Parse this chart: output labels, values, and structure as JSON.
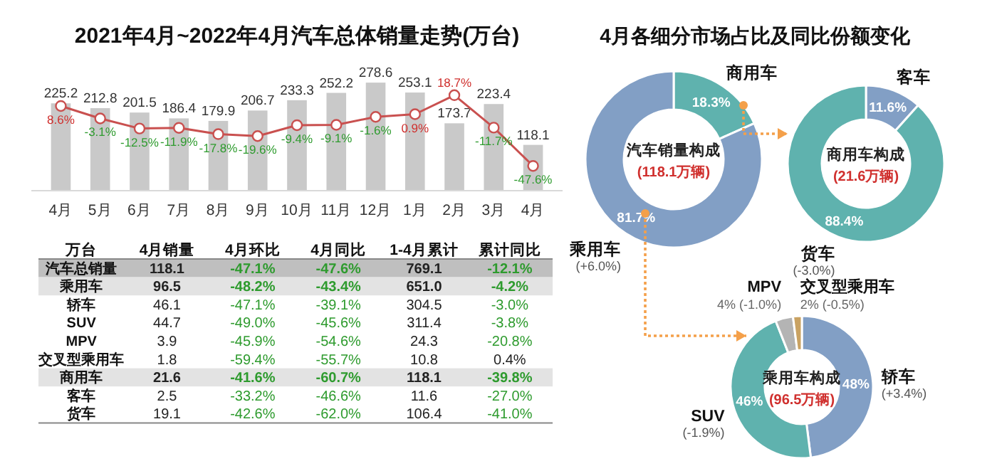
{
  "chart_data": [
    {
      "type": "bar",
      "title": "2021年4月~2022年4月汽车总体销量走势(万台)",
      "categories": [
        "4月",
        "5月",
        "6月",
        "7月",
        "8月",
        "9月",
        "10月",
        "11月",
        "12月",
        "1月",
        "2月",
        "3月",
        "4月"
      ],
      "data_labels": true,
      "marker": "circle",
      "tick_labels": "x",
      "series": [
        {
          "type": "bar",
          "color": "#c9c9c9",
          "values": [
            225.2,
            212.8,
            201.5,
            186.4,
            179.9,
            206.7,
            233.3,
            252.2,
            278.6,
            253.1,
            173.7,
            223.4,
            118.1
          ]
        },
        {
          "type": "line",
          "axis": "y2",
          "color": "#c9504f",
          "values": [
            8.6,
            -3.1,
            -12.5,
            -11.9,
            -17.8,
            -19.6,
            -9.4,
            -9.1,
            -1.6,
            0.9,
            18.7,
            -11.7,
            -47.6
          ],
          "value_labels": [
            "8.6%",
            "-3.1%",
            "-12.5%",
            "-11.9%",
            "-17.8%",
            "-19.6%",
            "-9.4%",
            "-9.1%",
            "-1.6%",
            "0.9%",
            "18.7%",
            "-11.7%",
            "-47.6%"
          ]
        }
      ]
    },
    {
      "type": "other",
      "categories": [
        "万台",
        "4月销量",
        "4月环比",
        "4月同比",
        "1-4月累计",
        "累计同比"
      ],
      "y_categories": [
        "汽车总销量",
        "乘用车",
        "轿车",
        "SUV",
        "MPV",
        "交叉型乘用车",
        "商用车",
        "客车",
        "货车"
      ],
      "cell_labels": [
        [
          "118.1",
          "-47.1%",
          "-47.6%",
          "769.1",
          "-12.1%"
        ],
        [
          "96.5",
          "-48.2%",
          "-43.4%",
          "651.0",
          "-4.2%"
        ],
        [
          "46.1",
          "-47.1%",
          "-39.1%",
          "304.5",
          "-3.0%"
        ],
        [
          "44.7",
          "-49.0%",
          "-45.6%",
          "311.4",
          "-3.8%"
        ],
        [
          "3.9",
          "-45.9%",
          "-54.6%",
          "24.3",
          "-20.8%"
        ],
        [
          "1.8",
          "-59.4%",
          "-55.7%",
          "10.8",
          "0.4%"
        ],
        [
          "21.6",
          "-41.6%",
          "-60.7%",
          "118.1",
          "-39.8%"
        ],
        [
          "2.5",
          "-33.2%",
          "-46.6%",
          "11.6",
          "-27.0%"
        ],
        [
          "19.1",
          "-42.6%",
          "-62.0%",
          "106.4",
          "-41.0%"
        ]
      ]
    },
    {
      "type": "donut",
      "title": "4月各细分市场占比及同比份额变化",
      "categories": [
        "商用车",
        "乘用车"
      ],
      "values": [
        18.3,
        81.7
      ],
      "colors": [
        "#5fb2ae",
        "#829fc5"
      ],
      "value_labels": [
        "18.3%",
        "81.7% (+6.0%)"
      ],
      "annotations": [
        "汽车销量构成",
        "(118.1万辆)"
      ]
    },
    {
      "type": "donut",
      "categories": [
        "客车",
        "货车"
      ],
      "values": [
        11.6,
        88.4
      ],
      "colors": [
        "#829fc5",
        "#5fb2ae"
      ],
      "value_labels": [
        "11.6%",
        "88.4% (-3.0%)"
      ],
      "annotations": [
        "商用车构成",
        "(21.6万辆)"
      ]
    },
    {
      "type": "donut",
      "categories": [
        "轿车",
        "SUV",
        "MPV",
        "交叉型乘用车"
      ],
      "values": [
        48,
        46,
        4,
        2
      ],
      "colors": [
        "#829fc5",
        "#5fb2ae",
        "#b4b4b4",
        "#c9a262"
      ],
      "value_labels": [
        "48% (+3.4%)",
        "46% (-1.9%)",
        "4% (-1.0%)",
        "2% (-0.5%)"
      ],
      "annotations": [
        "乘用车构成",
        "(96.5万辆)"
      ]
    }
  ]
}
